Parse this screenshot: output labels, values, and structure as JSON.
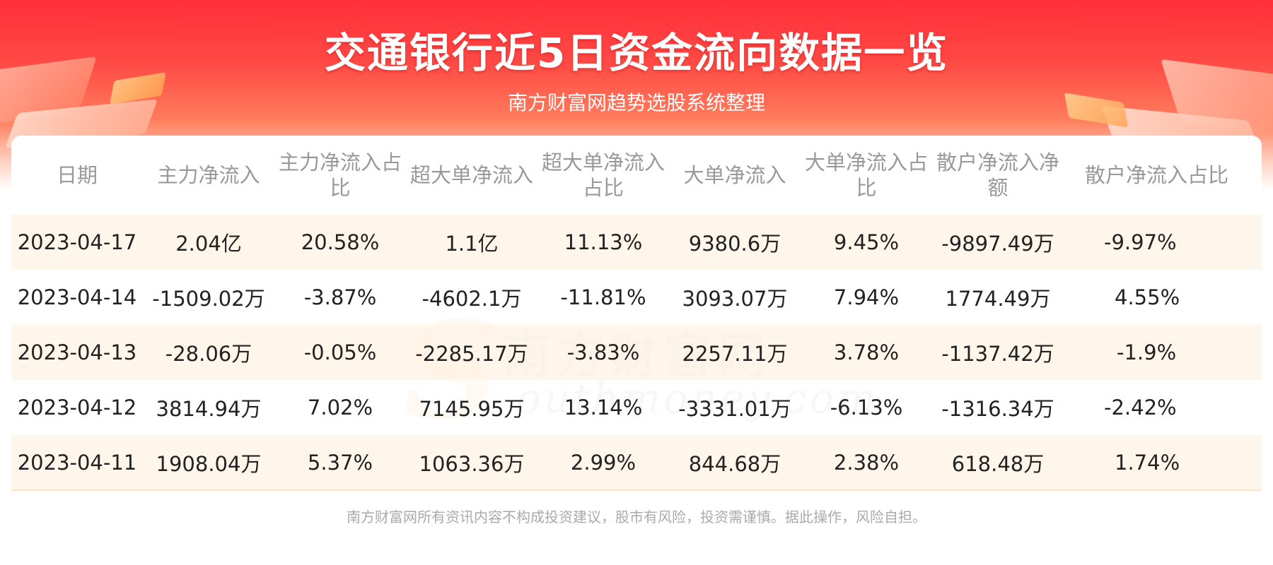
{
  "title": "交通银行近5日资金流向数据一览",
  "subtitle": "南方财富网趋势选股系统整理",
  "watermark": {
    "letter": "S",
    "cn": "南方财富网",
    "en": "outhmoney.com"
  },
  "table": {
    "headers": [
      "日期",
      "主力净流入",
      "主力净流入占比",
      "超大单净流入",
      "超大单净流入占比",
      "大单净流入",
      "大单净流入占比",
      "散户净流入净额",
      "散户净流入占比"
    ],
    "rows": [
      [
        "2023-04-17",
        "2.04亿",
        "20.58%",
        "1.1亿",
        "11.13%",
        "9380.6万",
        "9.45%",
        "-9897.49万",
        "-9.97%"
      ],
      [
        "2023-04-14",
        "-1509.02万",
        "-3.87%",
        "-4602.1万",
        "-11.81%",
        "3093.07万",
        "7.94%",
        "1774.49万",
        "4.55%"
      ],
      [
        "2023-04-13",
        "-28.06万",
        "-0.05%",
        "-2285.17万",
        "-3.83%",
        "2257.11万",
        "3.78%",
        "-1137.42万",
        "-1.9%"
      ],
      [
        "2023-04-12",
        "3814.94万",
        "7.02%",
        "7145.95万",
        "13.14%",
        "-3331.01万",
        "-6.13%",
        "-1316.34万",
        "-2.42%"
      ],
      [
        "2023-04-11",
        "1908.04万",
        "5.37%",
        "1063.36万",
        "2.99%",
        "844.68万",
        "2.38%",
        "618.48万",
        "1.74%"
      ]
    ]
  },
  "footer": "南方财富网所有资讯内容不构成投资建议，股市有风险，投资需谨慎。据此操作，风险自担。",
  "colors": {
    "banner_red": "#ff2f3a",
    "row_stripe": "#fff4e8",
    "header_text": "#999999",
    "cell_text": "#222222"
  }
}
